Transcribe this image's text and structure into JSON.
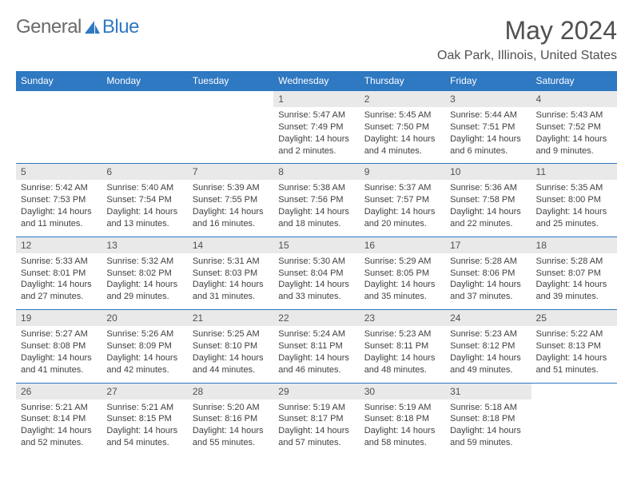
{
  "logo": {
    "part1": "General",
    "part2": "Blue"
  },
  "title": "May 2024",
  "location": "Oak Park, Illinois, United States",
  "colors": {
    "accent": "#2f78c2",
    "dayHeader": "#e9e9e9",
    "text": "#404040"
  },
  "weekdays": [
    "Sunday",
    "Monday",
    "Tuesday",
    "Wednesday",
    "Thursday",
    "Friday",
    "Saturday"
  ],
  "calendar": {
    "type": "table",
    "columns": 7,
    "rows": 5
  },
  "days": {
    "1": {
      "sr": "5:47 AM",
      "ss": "7:49 PM",
      "dl": "14 hours and 2 minutes."
    },
    "2": {
      "sr": "5:45 AM",
      "ss": "7:50 PM",
      "dl": "14 hours and 4 minutes."
    },
    "3": {
      "sr": "5:44 AM",
      "ss": "7:51 PM",
      "dl": "14 hours and 6 minutes."
    },
    "4": {
      "sr": "5:43 AM",
      "ss": "7:52 PM",
      "dl": "14 hours and 9 minutes."
    },
    "5": {
      "sr": "5:42 AM",
      "ss": "7:53 PM",
      "dl": "14 hours and 11 minutes."
    },
    "6": {
      "sr": "5:40 AM",
      "ss": "7:54 PM",
      "dl": "14 hours and 13 minutes."
    },
    "7": {
      "sr": "5:39 AM",
      "ss": "7:55 PM",
      "dl": "14 hours and 16 minutes."
    },
    "8": {
      "sr": "5:38 AM",
      "ss": "7:56 PM",
      "dl": "14 hours and 18 minutes."
    },
    "9": {
      "sr": "5:37 AM",
      "ss": "7:57 PM",
      "dl": "14 hours and 20 minutes."
    },
    "10": {
      "sr": "5:36 AM",
      "ss": "7:58 PM",
      "dl": "14 hours and 22 minutes."
    },
    "11": {
      "sr": "5:35 AM",
      "ss": "8:00 PM",
      "dl": "14 hours and 25 minutes."
    },
    "12": {
      "sr": "5:33 AM",
      "ss": "8:01 PM",
      "dl": "14 hours and 27 minutes."
    },
    "13": {
      "sr": "5:32 AM",
      "ss": "8:02 PM",
      "dl": "14 hours and 29 minutes."
    },
    "14": {
      "sr": "5:31 AM",
      "ss": "8:03 PM",
      "dl": "14 hours and 31 minutes."
    },
    "15": {
      "sr": "5:30 AM",
      "ss": "8:04 PM",
      "dl": "14 hours and 33 minutes."
    },
    "16": {
      "sr": "5:29 AM",
      "ss": "8:05 PM",
      "dl": "14 hours and 35 minutes."
    },
    "17": {
      "sr": "5:28 AM",
      "ss": "8:06 PM",
      "dl": "14 hours and 37 minutes."
    },
    "18": {
      "sr": "5:28 AM",
      "ss": "8:07 PM",
      "dl": "14 hours and 39 minutes."
    },
    "19": {
      "sr": "5:27 AM",
      "ss": "8:08 PM",
      "dl": "14 hours and 41 minutes."
    },
    "20": {
      "sr": "5:26 AM",
      "ss": "8:09 PM",
      "dl": "14 hours and 42 minutes."
    },
    "21": {
      "sr": "5:25 AM",
      "ss": "8:10 PM",
      "dl": "14 hours and 44 minutes."
    },
    "22": {
      "sr": "5:24 AM",
      "ss": "8:11 PM",
      "dl": "14 hours and 46 minutes."
    },
    "23": {
      "sr": "5:23 AM",
      "ss": "8:11 PM",
      "dl": "14 hours and 48 minutes."
    },
    "24": {
      "sr": "5:23 AM",
      "ss": "8:12 PM",
      "dl": "14 hours and 49 minutes."
    },
    "25": {
      "sr": "5:22 AM",
      "ss": "8:13 PM",
      "dl": "14 hours and 51 minutes."
    },
    "26": {
      "sr": "5:21 AM",
      "ss": "8:14 PM",
      "dl": "14 hours and 52 minutes."
    },
    "27": {
      "sr": "5:21 AM",
      "ss": "8:15 PM",
      "dl": "14 hours and 54 minutes."
    },
    "28": {
      "sr": "5:20 AM",
      "ss": "8:16 PM",
      "dl": "14 hours and 55 minutes."
    },
    "29": {
      "sr": "5:19 AM",
      "ss": "8:17 PM",
      "dl": "14 hours and 57 minutes."
    },
    "30": {
      "sr": "5:19 AM",
      "ss": "8:18 PM",
      "dl": "14 hours and 58 minutes."
    },
    "31": {
      "sr": "5:18 AM",
      "ss": "8:18 PM",
      "dl": "14 hours and 59 minutes."
    }
  },
  "labels": {
    "sunrise": "Sunrise: ",
    "sunset": "Sunset: ",
    "daylight": "Daylight: "
  },
  "startOffset": 3,
  "numDays": 31
}
